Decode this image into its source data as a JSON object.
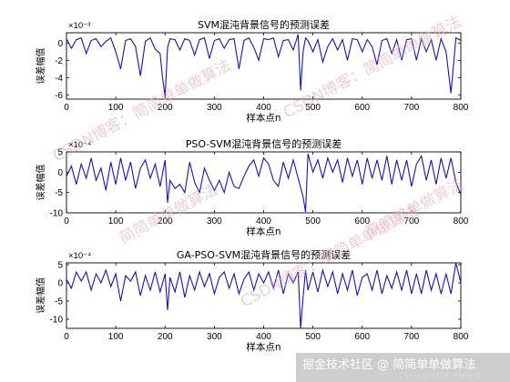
{
  "chart_data": [
    {
      "type": "line",
      "title": "SVM混沌背景信号的预测误差",
      "xlabel": "样本点n",
      "ylabel": "误差幅值",
      "exponent_label": "×10⁻³",
      "xlim": [
        0,
        800
      ],
      "ylim": [
        -6.5,
        1.2
      ],
      "xticks": [
        0,
        100,
        200,
        300,
        400,
        500,
        600,
        700,
        800
      ],
      "yticks": [
        0,
        -2,
        -4,
        -6
      ],
      "ytick_labels": [
        "0",
        "-2",
        "-4",
        "-6"
      ],
      "series": [
        {
          "x": [
            0,
            10,
            20,
            30,
            40,
            50,
            60,
            70,
            80,
            90,
            100,
            110,
            120,
            130,
            140,
            150,
            160,
            170,
            180,
            190,
            195,
            200,
            205,
            210,
            220,
            230,
            240,
            250,
            260,
            270,
            280,
            290,
            300,
            310,
            320,
            330,
            340,
            350,
            360,
            370,
            380,
            390,
            400,
            410,
            420,
            430,
            440,
            450,
            460,
            470,
            475,
            480,
            485,
            490,
            500,
            510,
            520,
            530,
            540,
            550,
            560,
            570,
            580,
            590,
            600,
            610,
            620,
            630,
            640,
            650,
            660,
            670,
            680,
            690,
            700,
            710,
            720,
            730,
            740,
            750,
            760,
            770,
            780,
            790,
            800
          ],
          "values": [
            0.5,
            -0.6,
            0.4,
            0.6,
            -1.2,
            0.3,
            0.5,
            -0.4,
            0.2,
            0.6,
            -1.0,
            -3.0,
            0.3,
            0.5,
            -0.4,
            -3.8,
            0.2,
            0.6,
            -0.7,
            -1.2,
            -4.0,
            -6.2,
            -0.5,
            0.5,
            0.4,
            -0.8,
            0.5,
            0.3,
            -1.4,
            0.4,
            0.6,
            -1.8,
            0.3,
            0.5,
            -0.6,
            0.4,
            0.5,
            -3.0,
            0.3,
            0.6,
            -0.5,
            -2.0,
            0.5,
            0.4,
            0.6,
            -1.6,
            0.3,
            0.4,
            -0.8,
            1.0,
            -5.5,
            -1.0,
            0.6,
            0.3,
            -1.0,
            0.4,
            -2.2,
            -0.4,
            0.5,
            -0.8,
            0.4,
            -2.0,
            0.5,
            0.4,
            -1.0,
            0.4,
            -0.4,
            -2.5,
            0.3,
            0.5,
            -1.2,
            0.4,
            -2.0,
            0.4,
            0.5,
            -2.0,
            0.5,
            -1.0,
            0.4,
            -2.0,
            0.5,
            -1.0,
            -5.8,
            0.6,
            0.3
          ]
        }
      ]
    },
    {
      "type": "line",
      "title": "PSO-SVM混沌背景信号的预测误差",
      "xlabel": "样本点n",
      "ylabel": "误差幅值",
      "exponent_label": "×10⁻⁴",
      "xlim": [
        0,
        800
      ],
      "ylim": [
        -10,
        5
      ],
      "xticks": [
        0,
        100,
        200,
        300,
        400,
        500,
        600,
        700,
        800
      ],
      "yticks": [
        5,
        0,
        -5,
        -10
      ],
      "ytick_labels": [
        "5",
        "0",
        "-5",
        "-10"
      ],
      "series": [
        {
          "x": [
            0,
            10,
            20,
            30,
            40,
            50,
            60,
            70,
            80,
            90,
            100,
            110,
            120,
            130,
            140,
            150,
            160,
            170,
            180,
            190,
            200,
            205,
            210,
            220,
            230,
            240,
            250,
            260,
            270,
            280,
            290,
            300,
            310,
            320,
            330,
            340,
            350,
            360,
            370,
            380,
            390,
            400,
            410,
            420,
            430,
            440,
            450,
            460,
            470,
            480,
            485,
            490,
            500,
            510,
            520,
            530,
            540,
            550,
            560,
            570,
            580,
            590,
            600,
            610,
            620,
            630,
            640,
            650,
            660,
            670,
            680,
            690,
            700,
            710,
            720,
            730,
            740,
            750,
            760,
            770,
            780,
            790,
            800
          ],
          "values": [
            -1.0,
            1.5,
            -3.0,
            2.0,
            -1.5,
            3.5,
            -2.0,
            1.0,
            -4.5,
            2.5,
            -3.0,
            3.5,
            -2.0,
            2.5,
            -4.0,
            1.0,
            3.0,
            -1.5,
            2.0,
            -3.5,
            3.0,
            -7.5,
            -2.0,
            -4.0,
            -3.0,
            -5.0,
            2.5,
            -2.5,
            -5.0,
            1.0,
            -2.0,
            -4.5,
            -2.0,
            -5.0,
            0.0,
            -3.5,
            -4.0,
            -1.0,
            1.5,
            3.0,
            -1.0,
            3.5,
            2.0,
            -2.0,
            -3.5,
            2.5,
            -1.5,
            3.0,
            -1.5,
            -6.0,
            -9.8,
            4.5,
            0.0,
            3.0,
            -1.5,
            3.5,
            0.0,
            3.0,
            -2.5,
            3.5,
            -1.0,
            3.0,
            -3.0,
            3.5,
            -1.5,
            3.0,
            -2.0,
            4.0,
            -3.0,
            3.0,
            -2.0,
            3.0,
            -3.5,
            2.0,
            4.0,
            -2.0,
            3.0,
            -3.0,
            3.5,
            -1.5,
            3.5,
            -2.5,
            -5.5
          ]
        }
      ]
    },
    {
      "type": "line",
      "title": "GA-PSO-SVM混沌背景信号的预测误差",
      "xlabel": "样本点n",
      "ylabel": "误差幅值",
      "exponent_label": "×10⁻⁴",
      "xlim": [
        0,
        800
      ],
      "ylim": [
        -12.5,
        5.5
      ],
      "xticks": [
        0,
        100,
        200,
        300,
        400,
        500,
        600,
        700,
        800
      ],
      "yticks": [
        5,
        0,
        -5,
        -10
      ],
      "ytick_labels": [
        "5",
        "0",
        "-5",
        "-10"
      ],
      "series": [
        {
          "x": [
            0,
            10,
            20,
            30,
            40,
            50,
            60,
            70,
            80,
            90,
            100,
            110,
            120,
            130,
            140,
            150,
            160,
            170,
            180,
            190,
            200,
            205,
            210,
            220,
            230,
            240,
            250,
            260,
            270,
            280,
            290,
            300,
            310,
            320,
            330,
            340,
            350,
            360,
            370,
            380,
            390,
            400,
            410,
            420,
            430,
            440,
            450,
            460,
            470,
            475,
            480,
            485,
            490,
            500,
            510,
            520,
            530,
            540,
            550,
            560,
            570,
            580,
            590,
            600,
            610,
            620,
            630,
            640,
            650,
            660,
            670,
            680,
            690,
            700,
            710,
            720,
            730,
            740,
            750,
            760,
            770,
            780,
            790,
            800
          ],
          "values": [
            1.0,
            -1.5,
            3.0,
            0.5,
            3.0,
            -2.0,
            2.5,
            0.0,
            3.5,
            -1.0,
            2.5,
            -5.0,
            2.0,
            0.5,
            3.0,
            -3.5,
            2.0,
            -2.0,
            3.0,
            -2.5,
            2.5,
            -7.5,
            1.5,
            -2.5,
            3.0,
            -4.0,
            2.0,
            -2.0,
            3.0,
            -1.0,
            2.5,
            -3.0,
            1.5,
            3.0,
            -1.5,
            2.5,
            -3.0,
            1.0,
            3.0,
            -2.0,
            2.5,
            0.0,
            3.0,
            -1.5,
            3.5,
            -3.0,
            2.5,
            0.0,
            3.0,
            -12.5,
            -4.0,
            3.5,
            -2.0,
            3.0,
            -2.5,
            3.5,
            -1.0,
            3.0,
            -3.0,
            2.5,
            -2.0,
            3.5,
            -3.5,
            1.5,
            2.5,
            -2.0,
            3.5,
            -3.0,
            2.0,
            -1.5,
            3.0,
            -2.0,
            3.5,
            -3.0,
            2.5,
            -3.0,
            3.5,
            -2.0,
            2.5,
            -3.0,
            2.5,
            -3.0,
            5.5,
            0.0
          ]
        }
      ]
    }
  ],
  "watermarks": [
    "CSDN博客：简简单单做算法",
    "CSDN博客：简简单单做算法",
    "简简单单做算法",
    "CSDN博客：简简单单做算法",
    "简简单单做算法"
  ],
  "badge": {
    "text": "掘金技术社区 @ 简简单单做算法",
    "small_text": "CSDN @简简单单做算法"
  }
}
